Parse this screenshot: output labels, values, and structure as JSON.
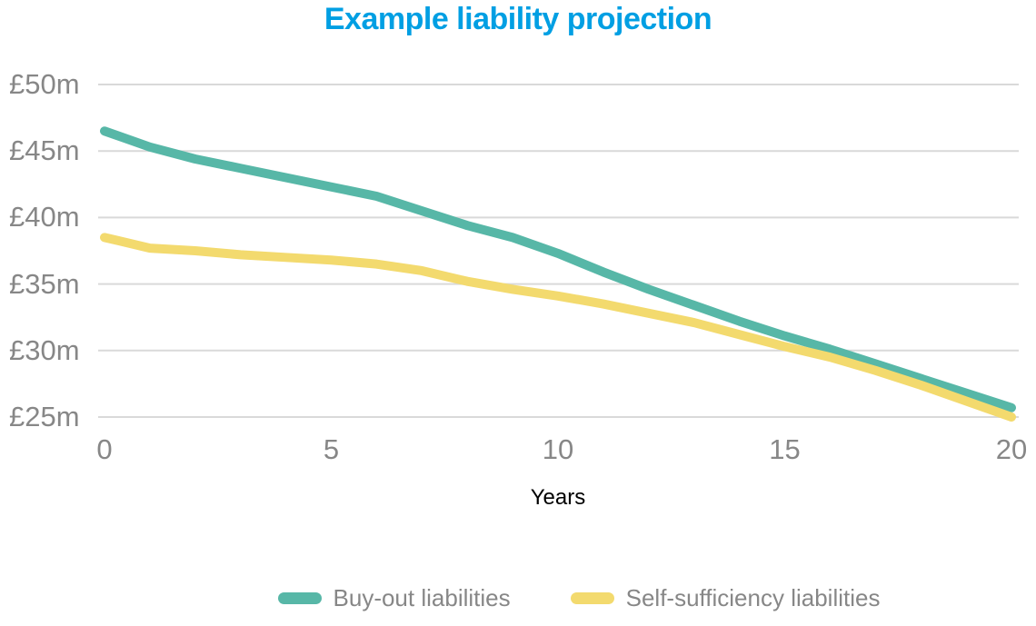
{
  "title": "Example liability projection",
  "colors": {
    "title_blue": "#009fe3",
    "axis_text_gray": "#878787",
    "legend_text_gray": "#878787",
    "gridline_gray": "#d9d9d9",
    "buy_out_teal": "#57b7a7",
    "self_sufficiency_yellow": "#f3da6e"
  },
  "chart_data": {
    "type": "line",
    "title": "Example liability projection",
    "xlabel": "Years",
    "ylabel": "",
    "xlim": [
      0,
      20
    ],
    "ylim": [
      25,
      50
    ],
    "grid": "horizontal-only",
    "legend_position": "bottom",
    "x_tick_values": [
      0,
      5,
      10,
      15,
      20
    ],
    "x_tick_labels": [
      "0",
      "5",
      "10",
      "15",
      "20"
    ],
    "y_tick_values": [
      50,
      45,
      40,
      35,
      30,
      25
    ],
    "y_tick_labels": [
      "£50m",
      "£45m",
      "£40m",
      "£35m",
      "£30m",
      "£25m"
    ],
    "x": [
      0,
      1,
      2,
      3,
      4,
      5,
      6,
      7,
      8,
      9,
      10,
      11,
      12,
      13,
      14,
      15,
      16,
      17,
      18,
      19,
      20
    ],
    "series": [
      {
        "name": "Buy-out liabilities",
        "color": "#57b7a7",
        "unit": "£m",
        "values": [
          46.5,
          45.3,
          44.4,
          43.7,
          43.0,
          42.3,
          41.6,
          40.5,
          39.4,
          38.5,
          37.3,
          35.9,
          34.6,
          33.4,
          32.2,
          31.1,
          30.1,
          29.0,
          27.9,
          26.8,
          25.7
        ]
      },
      {
        "name": "Self-sufficiency liabilities",
        "color": "#f3da6e",
        "unit": "£m",
        "values": [
          38.5,
          37.7,
          37.5,
          37.2,
          37.0,
          36.8,
          36.5,
          36.0,
          35.2,
          34.6,
          34.1,
          33.5,
          32.8,
          32.1,
          31.2,
          30.3,
          29.5,
          28.5,
          27.4,
          26.2,
          25.0
        ]
      }
    ]
  }
}
